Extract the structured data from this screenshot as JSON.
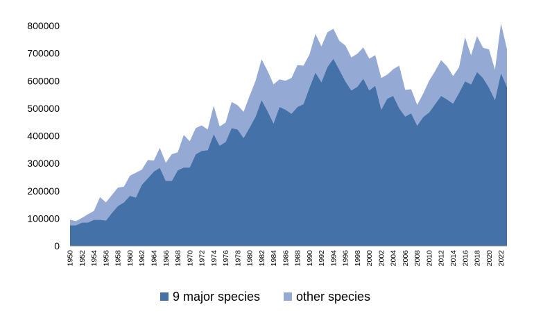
{
  "chart_data": {
    "type": "area",
    "stacked": true,
    "title": "",
    "xlabel": "",
    "ylabel": "",
    "xlim": [
      1950,
      2023
    ],
    "ylim": [
      0,
      800000
    ],
    "yticks": [
      0,
      100000,
      200000,
      300000,
      400000,
      500000,
      600000,
      700000,
      800000
    ],
    "ytick_labels": [
      "0",
      "100000",
      "200000",
      "300000",
      "400000",
      "500000",
      "600000",
      "700000",
      "800000"
    ],
    "xtick_labels": [
      "1950",
      "1952",
      "1954",
      "1956",
      "1958",
      "1960",
      "1962",
      "1964",
      "1966",
      "1968",
      "1970",
      "1972",
      "1974",
      "1976",
      "1978",
      "1980",
      "1982",
      "1984",
      "1986",
      "1988",
      "1990",
      "1992",
      "1994",
      "1996",
      "1998",
      "2000",
      "2002",
      "2004",
      "2006",
      "2008",
      "2010",
      "2012",
      "2014",
      "2016",
      "2018",
      "2020",
      "2022"
    ],
    "grid": false,
    "legend_position": "bottom",
    "years": [
      1950,
      1951,
      1952,
      1953,
      1954,
      1955,
      1956,
      1957,
      1958,
      1959,
      1960,
      1961,
      1962,
      1963,
      1964,
      1965,
      1966,
      1967,
      1968,
      1969,
      1970,
      1971,
      1972,
      1973,
      1974,
      1975,
      1976,
      1977,
      1978,
      1979,
      1980,
      1981,
      1982,
      1983,
      1984,
      1985,
      1986,
      1987,
      1988,
      1989,
      1990,
      1991,
      1992,
      1993,
      1994,
      1995,
      1996,
      1997,
      1998,
      1999,
      2000,
      2001,
      2002,
      2003,
      2004,
      2005,
      2006,
      2007,
      2008,
      2009,
      2010,
      2011,
      2012,
      2013,
      2014,
      2015,
      2016,
      2017,
      2018,
      2019,
      2020,
      2021,
      2022,
      2023
    ],
    "series": [
      {
        "name": "9 major species",
        "color": "#4471a8",
        "values": [
          75000,
          75000,
          85000,
          85000,
          95000,
          95000,
          92000,
          120000,
          145000,
          158000,
          182000,
          176000,
          222000,
          246000,
          270000,
          284000,
          236000,
          236000,
          275000,
          285000,
          285000,
          333000,
          345000,
          348000,
          406000,
          364000,
          378000,
          428000,
          423000,
          392000,
          430000,
          470000,
          530000,
          490000,
          445000,
          505000,
          495000,
          480000,
          505000,
          515000,
          575000,
          630000,
          595000,
          650000,
          680000,
          640000,
          598000,
          565000,
          578000,
          608000,
          565000,
          582000,
          495000,
          535000,
          545000,
          500000,
          470000,
          482000,
          437000,
          468000,
          485000,
          515000,
          545000,
          532000,
          517000,
          556000,
          598000,
          587000,
          632000,
          610000,
          575000,
          530000,
          628000,
          578000
        ]
      },
      {
        "name": "other species",
        "color": "#94a9d4",
        "values": [
          20000,
          15000,
          17000,
          30000,
          32000,
          82000,
          66000,
          65000,
          67000,
          57000,
          73000,
          90000,
          55000,
          66000,
          40000,
          72000,
          66000,
          97000,
          65000,
          118000,
          95000,
          95000,
          93000,
          75000,
          103000,
          70000,
          70000,
          95000,
          88000,
          95000,
          115000,
          130000,
          148000,
          146000,
          142000,
          100000,
          105000,
          130000,
          152000,
          140000,
          120000,
          140000,
          130000,
          126000,
          109000,
          105000,
          130000,
          120000,
          120000,
          113000,
          115000,
          111000,
          115000,
          87000,
          97000,
          155000,
          97000,
          87000,
          75000,
          85000,
          115000,
          120000,
          130000,
          120000,
          100000,
          93000,
          160000,
          105000,
          130000,
          110000,
          139000,
          110000,
          180000,
          137000
        ]
      }
    ]
  }
}
